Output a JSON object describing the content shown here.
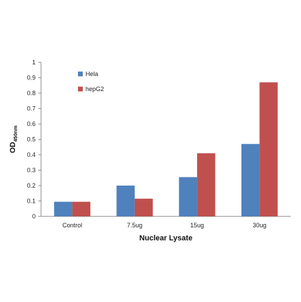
{
  "chart_data": {
    "type": "bar",
    "categories": [
      "Control",
      "7.5ug",
      "15ug",
      "30ug"
    ],
    "series": [
      {
        "name": "Hela",
        "values": [
          0.095,
          0.2,
          0.255,
          0.47
        ],
        "color": "#4f81bd"
      },
      {
        "name": "hepG2",
        "values": [
          0.095,
          0.115,
          0.41,
          0.87
        ],
        "color": "#c0504d"
      }
    ],
    "xlabel": "Nuclear Lysate",
    "ylabel_main": "OD",
    "ylabel_sub": "450nm",
    "ylim": [
      0,
      1
    ],
    "yticks": [
      "0",
      "0.1",
      "0.2",
      "0.3",
      "0.4",
      "0.5",
      "0.6",
      "0.7",
      "0.8",
      "0.9",
      "1"
    ],
    "grid": false,
    "legend_position": "top-left"
  }
}
